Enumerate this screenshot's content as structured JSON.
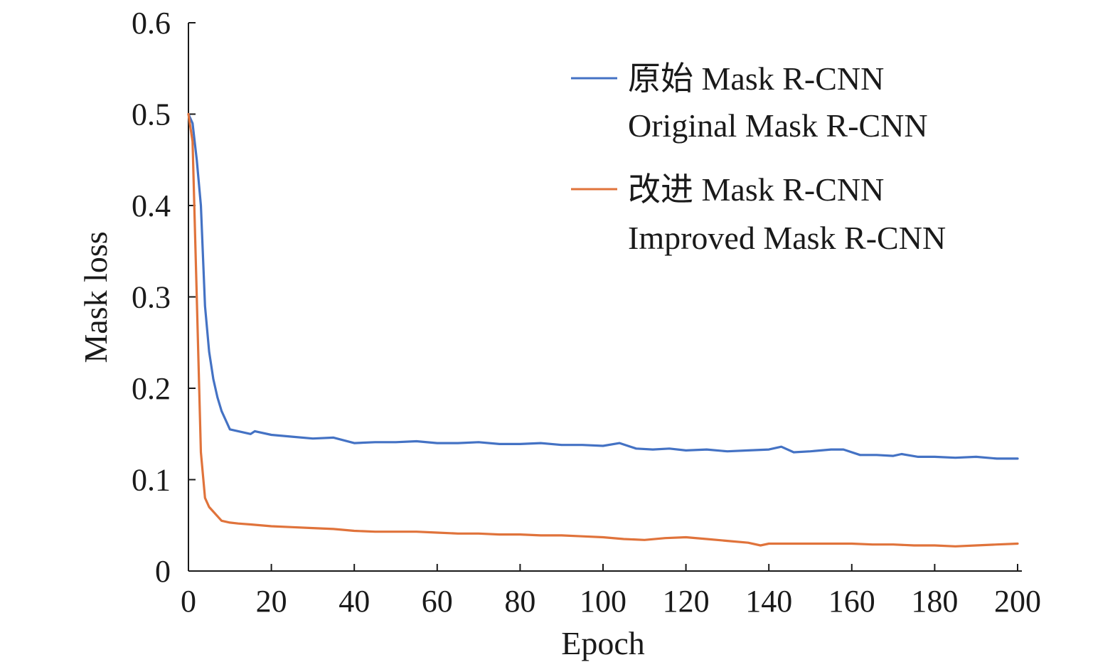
{
  "chart_data": {
    "type": "line",
    "title": "",
    "xlabel": "Epoch",
    "ylabel": "Mask loss",
    "xlim": [
      0,
      200
    ],
    "ylim": [
      0,
      0.6
    ],
    "xticks": [
      0,
      20,
      40,
      60,
      80,
      100,
      120,
      140,
      160,
      180,
      200
    ],
    "yticks": [
      0,
      0.1,
      0.2,
      0.3,
      0.4,
      0.5,
      0.6
    ],
    "xtick_labels": [
      "0",
      "20",
      "40",
      "60",
      "80",
      "100",
      "120",
      "140",
      "160",
      "180",
      "200"
    ],
    "ytick_labels": [
      "0",
      "0.1",
      "0.2",
      "0.3",
      "0.4",
      "0.5",
      "0.6"
    ],
    "grid": false,
    "legend_position": "top-right",
    "series": [
      {
        "name": "原始 Mask R-CNN",
        "name_en": "Original Mask R-CNN",
        "color": "#4472c4",
        "points": [
          [
            0,
            0.5
          ],
          [
            1,
            0.49
          ],
          [
            2,
            0.45
          ],
          [
            3,
            0.4
          ],
          [
            4,
            0.29
          ],
          [
            5,
            0.24
          ],
          [
            6,
            0.21
          ],
          [
            7,
            0.19
          ],
          [
            8,
            0.175
          ],
          [
            9,
            0.165
          ],
          [
            10,
            0.155
          ],
          [
            12,
            0.153
          ],
          [
            15,
            0.15
          ],
          [
            16,
            0.153
          ],
          [
            20,
            0.149
          ],
          [
            25,
            0.147
          ],
          [
            30,
            0.145
          ],
          [
            35,
            0.146
          ],
          [
            40,
            0.14
          ],
          [
            45,
            0.141
          ],
          [
            50,
            0.141
          ],
          [
            55,
            0.142
          ],
          [
            60,
            0.14
          ],
          [
            65,
            0.14
          ],
          [
            70,
            0.141
          ],
          [
            75,
            0.139
          ],
          [
            80,
            0.139
          ],
          [
            85,
            0.14
          ],
          [
            90,
            0.138
          ],
          [
            95,
            0.138
          ],
          [
            100,
            0.137
          ],
          [
            104,
            0.14
          ],
          [
            108,
            0.134
          ],
          [
            112,
            0.133
          ],
          [
            116,
            0.134
          ],
          [
            120,
            0.132
          ],
          [
            125,
            0.133
          ],
          [
            130,
            0.131
          ],
          [
            135,
            0.132
          ],
          [
            140,
            0.133
          ],
          [
            143,
            0.136
          ],
          [
            146,
            0.13
          ],
          [
            150,
            0.131
          ],
          [
            155,
            0.133
          ],
          [
            158,
            0.133
          ],
          [
            162,
            0.127
          ],
          [
            166,
            0.127
          ],
          [
            170,
            0.126
          ],
          [
            172,
            0.128
          ],
          [
            176,
            0.125
          ],
          [
            180,
            0.125
          ],
          [
            185,
            0.124
          ],
          [
            190,
            0.125
          ],
          [
            195,
            0.123
          ],
          [
            200,
            0.123
          ]
        ]
      },
      {
        "name": "改进 Mask R-CNN",
        "name_en": "Improved Mask R-CNN",
        "color": "#e0733b",
        "points": [
          [
            0,
            0.5
          ],
          [
            1,
            0.47
          ],
          [
            2,
            0.3
          ],
          [
            3,
            0.13
          ],
          [
            4,
            0.08
          ],
          [
            5,
            0.07
          ],
          [
            6,
            0.065
          ],
          [
            7,
            0.06
          ],
          [
            8,
            0.055
          ],
          [
            10,
            0.053
          ],
          [
            12,
            0.052
          ],
          [
            15,
            0.051
          ],
          [
            20,
            0.049
          ],
          [
            25,
            0.048
          ],
          [
            30,
            0.047
          ],
          [
            35,
            0.046
          ],
          [
            40,
            0.044
          ],
          [
            45,
            0.043
          ],
          [
            50,
            0.043
          ],
          [
            55,
            0.043
          ],
          [
            60,
            0.042
          ],
          [
            65,
            0.041
          ],
          [
            70,
            0.041
          ],
          [
            75,
            0.04
          ],
          [
            80,
            0.04
          ],
          [
            85,
            0.039
          ],
          [
            90,
            0.039
          ],
          [
            95,
            0.038
          ],
          [
            100,
            0.037
          ],
          [
            105,
            0.035
          ],
          [
            110,
            0.034
          ],
          [
            115,
            0.036
          ],
          [
            120,
            0.037
          ],
          [
            125,
            0.035
          ],
          [
            130,
            0.033
          ],
          [
            135,
            0.031
          ],
          [
            138,
            0.028
          ],
          [
            140,
            0.03
          ],
          [
            145,
            0.03
          ],
          [
            150,
            0.03
          ],
          [
            155,
            0.03
          ],
          [
            160,
            0.03
          ],
          [
            165,
            0.029
          ],
          [
            170,
            0.029
          ],
          [
            175,
            0.028
          ],
          [
            180,
            0.028
          ],
          [
            185,
            0.027
          ],
          [
            190,
            0.028
          ],
          [
            195,
            0.029
          ],
          [
            200,
            0.03
          ]
        ]
      }
    ]
  }
}
